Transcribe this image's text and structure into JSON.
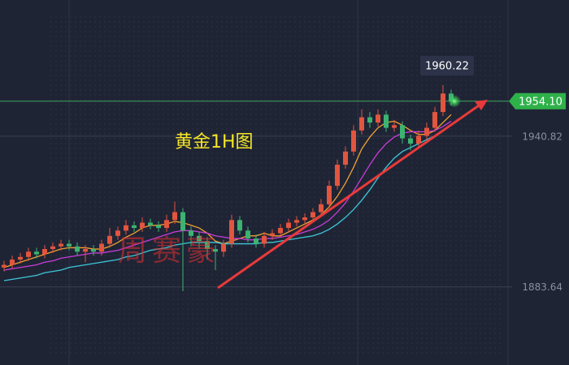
{
  "chart_data": {
    "type": "candlestick",
    "title": "黄金1H图",
    "watermark": "周赛豪",
    "open": [
      1891,
      1892,
      1894,
      1895,
      1897,
      1896,
      1898,
      1899,
      1900,
      1899,
      1897,
      1898,
      1897,
      1900,
      1903,
      1905,
      1907,
      1906,
      1908,
      1907,
      1906,
      1909,
      1912,
      1905,
      1903,
      1901,
      1898,
      1897,
      1900,
      1909,
      1905,
      1902,
      1900,
      1903,
      1904,
      1906,
      1908,
      1909,
      1910,
      1912,
      1915,
      1922,
      1930,
      1935,
      1943,
      1948,
      1946,
      1949,
      1944,
      1945,
      1940,
      1938,
      1941,
      1944,
      1950,
      1957
    ],
    "high": [
      1893.5,
      1895.5,
      1896.5,
      1898.5,
      1898.5,
      1899.5,
      1900.5,
      1901.5,
      1901.5,
      1900.5,
      1899.5,
      1899.5,
      1901.5,
      1906,
      1906.5,
      1909,
      1908.5,
      1910,
      1909.5,
      1908.5,
      1911,
      1916,
      1913.5,
      1906.5,
      1904.5,
      1902.5,
      1899.5,
      1901.5,
      1911,
      1910.5,
      1906.5,
      1903.5,
      1904.5,
      1905.5,
      1907.5,
      1909.5,
      1910.5,
      1911.5,
      1913.5,
      1917,
      1924,
      1932,
      1937,
      1945,
      1951,
      1950,
      1951,
      1950.5,
      1947,
      1946.5,
      1941.5,
      1943,
      1946,
      1952,
      1960.22,
      1958.5
    ],
    "low": [
      1889.5,
      1890.5,
      1892.5,
      1893.5,
      1894.5,
      1894.5,
      1896.5,
      1897.5,
      1897.5,
      1895.5,
      1893,
      1895.5,
      1895.5,
      1898.5,
      1901.5,
      1903.5,
      1904.5,
      1904.5,
      1905.5,
      1904.5,
      1904.5,
      1907.5,
      1882,
      1899,
      1898,
      1894,
      1890,
      1895,
      1898.5,
      1903.5,
      1900.5,
      1898.5,
      1898.5,
      1901.5,
      1902.5,
      1904.5,
      1906.5,
      1907.5,
      1908.5,
      1910.5,
      1913.5,
      1920.5,
      1928.5,
      1933.5,
      1941.5,
      1944,
      1944.5,
      1942.5,
      1942.5,
      1938,
      1935.5,
      1936.5,
      1939.5,
      1942.5,
      1948.5,
      1952.5
    ],
    "close": [
      1892,
      1894,
      1895,
      1897,
      1896,
      1898,
      1899,
      1900,
      1899,
      1897,
      1898,
      1897,
      1900,
      1903,
      1905,
      1907,
      1906,
      1908,
      1907,
      1906,
      1909,
      1912,
      1905,
      1903,
      1901,
      1898,
      1897,
      1900,
      1909,
      1905,
      1902,
      1900,
      1903,
      1904,
      1906,
      1908,
      1909,
      1910,
      1912,
      1915,
      1922,
      1930,
      1935,
      1943,
      1948,
      1946,
      1949,
      1944,
      1945,
      1940,
      1938,
      1941,
      1944,
      1950,
      1957,
      1954.1
    ],
    "up_color": "#e2553e",
    "down_color": "#3cb371",
    "ma": [
      {
        "color": "#f0a030",
        "values": [
          1891,
          1892,
          1893,
          1894,
          1895,
          1896,
          1897,
          1898,
          1898.5,
          1898.5,
          1898.5,
          1898,
          1898,
          1899,
          1900.5,
          1902.5,
          1904,
          1906,
          1907,
          1907,
          1907.5,
          1908.5,
          1908,
          1907,
          1906,
          1904,
          1901,
          1900,
          1901,
          1902,
          1903,
          1903,
          1904,
          1903,
          1903,
          1904.5,
          1906,
          1907.5,
          1909,
          1911,
          1914,
          1918,
          1923,
          1929,
          1936,
          1940.5,
          1944,
          1946,
          1946.5,
          1945,
          1943,
          1941.5,
          1941.5,
          1943,
          1946,
          1949
        ]
      },
      {
        "color": "#c83cd8",
        "values": [
          1890,
          1890.5,
          1891,
          1891.5,
          1892,
          1893,
          1893.5,
          1894.5,
          1895,
          1895.5,
          1896,
          1896.5,
          1896.5,
          1897,
          1897.5,
          1898.5,
          1899.5,
          1900.5,
          1901.5,
          1902.5,
          1903.5,
          1904.5,
          1905,
          1905,
          1904.5,
          1904,
          1903,
          1902.5,
          1902,
          1902,
          1901.5,
          1901.5,
          1902,
          1902,
          1902.5,
          1903,
          1903.5,
          1904.5,
          1905.5,
          1907,
          1909,
          1912,
          1915.5,
          1920,
          1925,
          1930,
          1934.5,
          1938,
          1940.5,
          1942,
          1942.5,
          1942.5,
          1942.5,
          1943,
          1944.5,
          1946.5
        ]
      },
      {
        "color": "#3cc8d8",
        "values": [
          1886,
          1886.5,
          1887,
          1887.5,
          1888,
          1889,
          1889.5,
          1890,
          1891,
          1891.5,
          1892,
          1892.5,
          1893,
          1893.5,
          1894,
          1895,
          1895.5,
          1896.5,
          1897.5,
          1898,
          1898.5,
          1899.5,
          1900,
          1900.5,
          1900.5,
          1900.5,
          1900.5,
          1900,
          1900,
          1900,
          1900,
          1900,
          1900.5,
          1900.5,
          1901,
          1901.5,
          1902,
          1902.5,
          1903,
          1904,
          1905.5,
          1907.5,
          1910,
          1913,
          1916.5,
          1920.5,
          1925,
          1929,
          1932.5,
          1935,
          1936.5,
          1938,
          1939.5,
          1941,
          1943,
          1945
        ]
      }
    ],
    "ylim": [
      1854,
      1992.5
    ],
    "yticks": [
      1940.82,
      1883.64
    ],
    "last_price": {
      "value": 1954.1,
      "label": "1954.10"
    },
    "high_label": 1960.22,
    "grid": true
  }
}
